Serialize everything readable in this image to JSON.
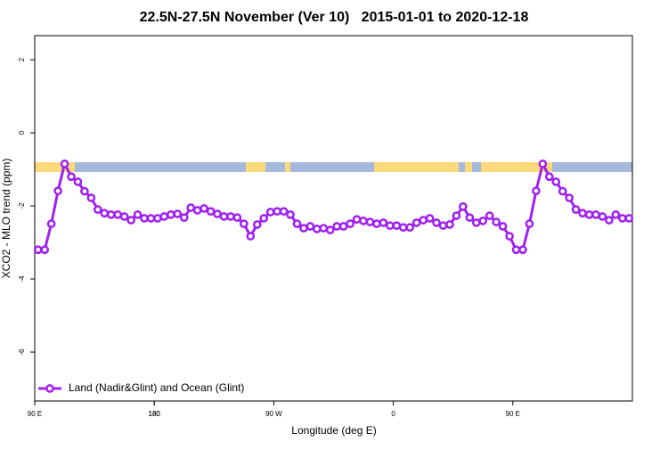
{
  "chart_data": {
    "type": "line",
    "title": "22.5N-27.5N November (Ver 10)   2015-01-01 to 2020-12-18",
    "x_label": "Longitude (deg E)",
    "y_label": "XCO2 - MLO trend (ppm)",
    "x": [
      92.5,
      97.5,
      102.5,
      107.5,
      112.5,
      117.5,
      122.5,
      127.5,
      132.5,
      137.5,
      142.5,
      147.5,
      152.5,
      157.5,
      162.5,
      167.5,
      172.5,
      177.5,
      182.5,
      187.5,
      192.5,
      197.5,
      202.5,
      207.5,
      212.5,
      217.5,
      222.5,
      227.5,
      232.5,
      237.5,
      242.5,
      247.5,
      252.5,
      257.5,
      262.5,
      267.5,
      272.5,
      277.5,
      282.5,
      287.5,
      292.5,
      297.5,
      302.5,
      307.5,
      312.5,
      317.5,
      322.5,
      327.5,
      332.5,
      337.5,
      342.5,
      347.5,
      352.5,
      357.5,
      362.5,
      367.5,
      372.5,
      377.5,
      382.5,
      387.5,
      392.5,
      397.5,
      402.5,
      407.5,
      412.5,
      417.5,
      422.5,
      427.5,
      432.5,
      437.5,
      442.5,
      447.5,
      452.5,
      457.5,
      462.5,
      467.5,
      472.5,
      477.5,
      482.5,
      487.5,
      492.5,
      497.5,
      502.5,
      507.5,
      512.5,
      517.5,
      522.5,
      527.5,
      532.5,
      537.5
    ],
    "series": [
      {
        "name": "Land (Nadir&Glint) and Ocean (Glint)",
        "color": "#a020f0",
        "values": [
          -3.2,
          -3.2,
          -2.49,
          -1.59,
          -0.85,
          -1.2,
          -1.34,
          -1.6,
          -1.78,
          -2.1,
          -2.2,
          -2.24,
          -2.24,
          -2.29,
          -2.39,
          -2.24,
          -2.34,
          -2.34,
          -2.34,
          -2.29,
          -2.24,
          -2.22,
          -2.32,
          -2.05,
          -2.12,
          -2.07,
          -2.15,
          -2.22,
          -2.29,
          -2.29,
          -2.32,
          -2.49,
          -2.83,
          -2.51,
          -2.34,
          -2.17,
          -2.15,
          -2.15,
          -2.24,
          -2.49,
          -2.61,
          -2.56,
          -2.63,
          -2.61,
          -2.66,
          -2.56,
          -2.56,
          -2.49,
          -2.37,
          -2.41,
          -2.44,
          -2.49,
          -2.46,
          -2.54,
          -2.54,
          -2.59,
          -2.59,
          -2.46,
          -2.39,
          -2.34,
          -2.46,
          -2.54,
          -2.51,
          -2.27,
          -2.02,
          -2.32,
          -2.46,
          -2.41,
          -2.27,
          -2.44,
          -2.56,
          -2.83,
          -3.2,
          -3.2,
          -2.49,
          -1.59,
          -0.85,
          -1.2,
          -1.34,
          -1.6,
          -1.78,
          -2.1,
          -2.2,
          -2.24,
          -2.24,
          -2.29,
          -2.39,
          -2.24,
          -2.34,
          -2.34
        ]
      }
    ],
    "xlim": [
      90,
      540
    ],
    "xticks": [
      {
        "value": 90,
        "label": "90 E"
      },
      180,
      {
        "value": 270,
        "label": "90 W"
      },
      {
        "value": 360,
        "label": "0"
      },
      {
        "value": 450,
        "label": "90 E"
      },
      180.0001
    ],
    "ylim": [
      -7.34,
      2.66
    ],
    "yticks": [
      2,
      0,
      -2,
      -4,
      -6
    ],
    "legend": "bottom-left"
  }
}
